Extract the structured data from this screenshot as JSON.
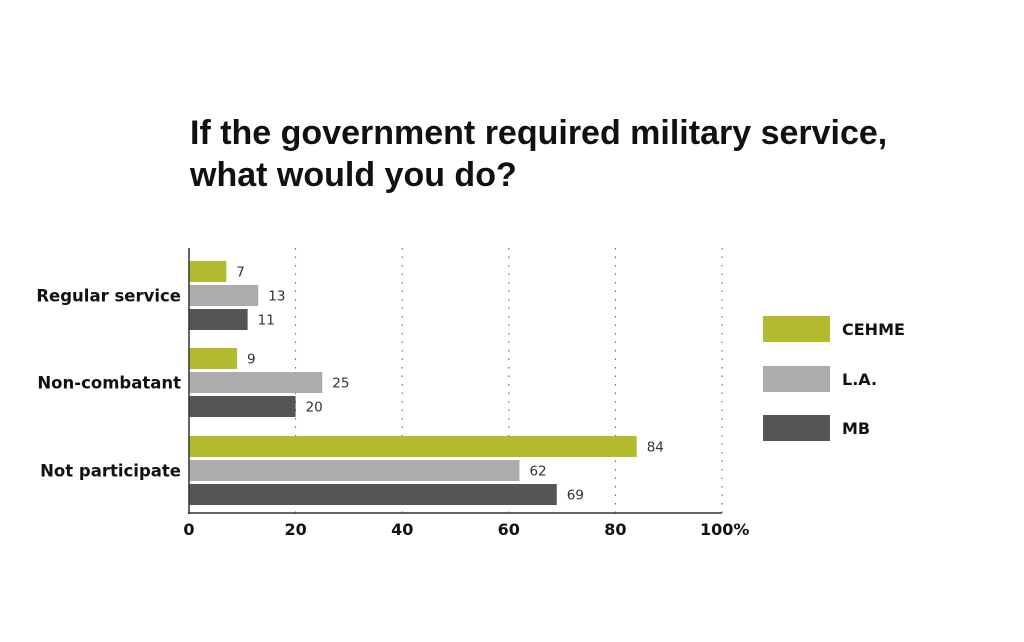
{
  "chart_data": {
    "type": "bar",
    "orientation": "horizontal",
    "title_lines": [
      "If the government required military service,",
      "what would you do?"
    ],
    "categories": [
      "Regular service",
      "Non-combatant",
      "Not participate"
    ],
    "series": [
      {
        "name": "CEHME",
        "color": "#b5bb2f",
        "values": [
          7,
          9,
          84
        ]
      },
      {
        "name": "L.A.",
        "color": "#acacac",
        "values": [
          13,
          25,
          62
        ]
      },
      {
        "name": "MB",
        "color": "#555555",
        "values": [
          11,
          20,
          69
        ]
      }
    ],
    "xlim": [
      0,
      100
    ],
    "x_ticks": [
      0,
      20,
      40,
      60,
      80,
      100
    ],
    "x_tick_labels": [
      "0",
      "20",
      "40",
      "60",
      "80",
      "100%"
    ],
    "grid": "vertical-dotted",
    "legend_position": "right"
  }
}
